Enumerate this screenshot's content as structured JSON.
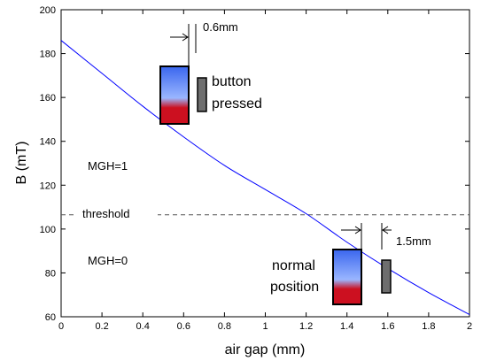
{
  "chart_data": {
    "type": "line",
    "title": "",
    "xlabel": "air gap (mm)",
    "ylabel": "B (mT)",
    "xlim": [
      0,
      2
    ],
    "ylim": [
      60,
      200
    ],
    "grid": false,
    "x_ticks": [
      "0",
      "0.2",
      "0.4",
      "0.6",
      "0.8",
      "1",
      "1.2",
      "1.4",
      "1.6",
      "1.8",
      "2"
    ],
    "y_ticks": [
      "60",
      "80",
      "100",
      "120",
      "140",
      "160",
      "180",
      "200"
    ],
    "series": [
      {
        "color": "#0000ff",
        "x": [
          0,
          0.2,
          0.4,
          0.6,
          0.8,
          1.0,
          1.2,
          1.4,
          1.6,
          1.8,
          2.0
        ],
        "y": [
          186,
          171,
          156,
          142,
          129,
          118,
          107,
          94,
          82,
          71,
          61
        ]
      }
    ],
    "threshold": {
      "y": 106.5,
      "label": "threshold",
      "color": "#555555"
    },
    "annotations": {
      "mgh1": "MGH=1",
      "mgh0": "MGH=0",
      "gap_top": "0.6mm",
      "gap_bottom": "1.5mm",
      "pressed_line1": "button",
      "pressed_line2": "pressed",
      "normal_line1": "normal",
      "normal_line2": "position"
    },
    "magnet_colors": {
      "top": "#3a66ee",
      "light": "#9ab6ff",
      "bottom": "#cc1020"
    },
    "sensor_color": "#6e6e6e"
  }
}
